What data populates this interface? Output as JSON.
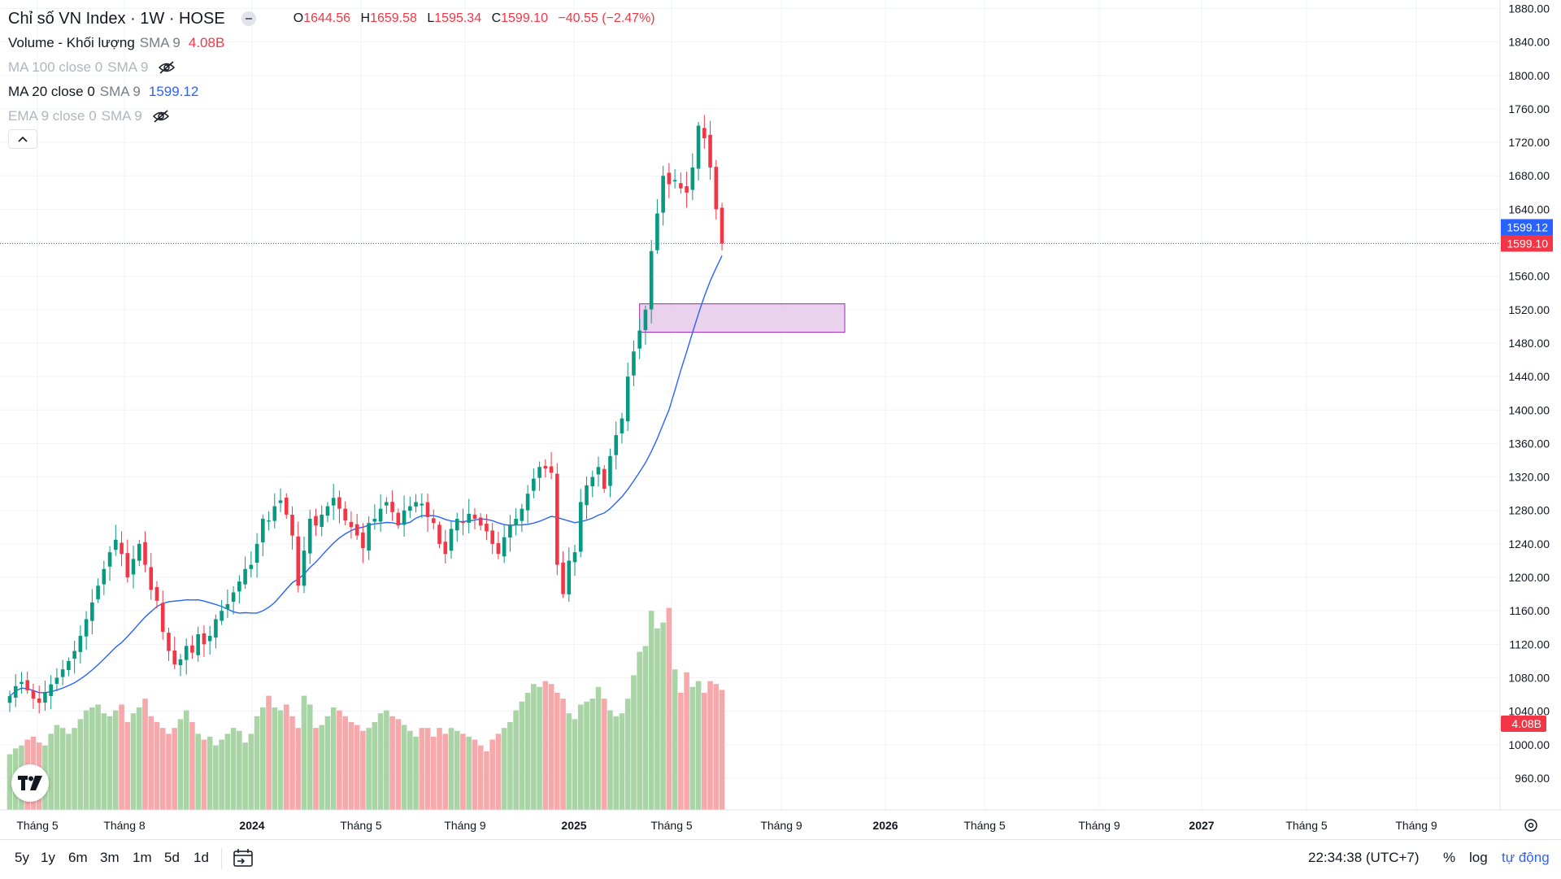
{
  "header": {
    "symbol": "Chỉ số VN Index · 1W · HOSE",
    "ohlc": {
      "open_label": "O",
      "open": "1644.56",
      "high_label": "H",
      "high": "1659.58",
      "low_label": "L",
      "low": "1595.34",
      "close_label": "C",
      "close": "1599.10",
      "change": "−40.55 (−2.47%)"
    }
  },
  "indicators": [
    {
      "name": "Volume - Khối lượng",
      "params": "SMA 9",
      "value": "4.08B",
      "value_color": "#f23645",
      "hidden": false
    },
    {
      "name": "MA 100 close 0",
      "params": "SMA 9",
      "value": "",
      "hidden": true
    },
    {
      "name": "MA 20 close 0",
      "params": "SMA 9",
      "value": "1599.12",
      "value_color": "#2962ff",
      "hidden": false
    },
    {
      "name": "EMA 9 close 0",
      "params": "SMA 9",
      "value": "",
      "hidden": true
    }
  ],
  "colors": {
    "up": "#089981",
    "down": "#f23645",
    "vol_up": "#a9d4a5",
    "vol_down": "#f7a8ab",
    "ma": "#2962ff",
    "zone": "#e1bee7",
    "zone_border": "#9c27b0"
  },
  "chart_data": {
    "type": "candlestick",
    "ylim": [
      940,
      1880
    ],
    "y_ticks": [
      "1880.00",
      "1840.00",
      "1800.00",
      "1760.00",
      "1720.00",
      "1680.00",
      "1640.00",
      "1600.00",
      "1560.00",
      "1520.00",
      "1480.00",
      "1440.00",
      "1400.00",
      "1360.00",
      "1320.00",
      "1280.00",
      "1240.00",
      "1200.00",
      "1160.00",
      "1120.00",
      "1080.00",
      "1040.00",
      "1000.00",
      "960.00"
    ],
    "x_ticks": [
      "Tháng 5",
      "Tháng 8",
      "2024",
      "Tháng 5",
      "Tháng 9",
      "2025",
      "Tháng 5",
      "Tháng 9",
      "2026",
      "Tháng 5",
      "Tháng 9",
      "2027",
      "Tháng 5",
      "Tháng 9"
    ],
    "x_tick_bold": [
      "2024",
      "2025",
      "2026",
      "2027"
    ],
    "price_label": "1599.10",
    "ma_label": "1599.12",
    "volume_label": "4.08B",
    "closes": [
      1058,
      1070,
      1075,
      1065,
      1055,
      1050,
      1062,
      1072,
      1080,
      1090,
      1100,
      1112,
      1130,
      1150,
      1170,
      1190,
      1210,
      1230,
      1245,
      1228,
      1200,
      1222,
      1240,
      1215,
      1185,
      1172,
      1135,
      1112,
      1096,
      1102,
      1118,
      1110,
      1132,
      1120,
      1130,
      1150,
      1160,
      1168,
      1182,
      1195,
      1210,
      1215,
      1240,
      1270,
      1268,
      1285,
      1292,
      1275,
      1250,
      1190,
      1232,
      1270,
      1262,
      1275,
      1285,
      1295,
      1282,
      1268,
      1260,
      1250,
      1235,
      1265,
      1270,
      1282,
      1290,
      1278,
      1262,
      1280,
      1285,
      1290,
      1288,
      1272,
      1265,
      1240,
      1228,
      1258,
      1270,
      1265,
      1276,
      1270,
      1262,
      1255,
      1240,
      1228,
      1248,
      1262,
      1270,
      1282,
      1300,
      1318,
      1332,
      1330,
      1325,
      1215,
      1180,
      1220,
      1230,
      1290,
      1310,
      1320,
      1332,
      1306,
      1345,
      1370,
      1390,
      1440,
      1470,
      1495,
      1520,
      1590,
      1635,
      1680,
      1670,
      1675,
      1665,
      1660,
      1690,
      1740,
      1725,
      1690,
      1640,
      1599
    ],
    "volumes_billions": [
      1.9,
      2.1,
      2.2,
      2.4,
      2.5,
      2.3,
      2.2,
      2.6,
      2.9,
      2.8,
      2.6,
      2.8,
      3.1,
      3.4,
      3.5,
      3.6,
      3.3,
      3.2,
      3.4,
      3.6,
      3.0,
      3.3,
      3.5,
      3.8,
      3.2,
      3.0,
      2.8,
      2.6,
      2.8,
      3.1,
      3.4,
      3.0,
      2.6,
      2.4,
      2.5,
      2.2,
      2.4,
      2.6,
      2.8,
      2.7,
      2.3,
      2.6,
      3.2,
      3.5,
      3.9,
      3.5,
      3.4,
      3.6,
      3.2,
      2.8,
      3.9,
      3.6,
      2.8,
      2.9,
      3.2,
      3.5,
      3.4,
      3.2,
      3.0,
      2.9,
      2.7,
      2.8,
      3.0,
      3.3,
      3.4,
      3.2,
      3.1,
      2.9,
      2.7,
      2.5,
      2.8,
      2.8,
      2.5,
      2.8,
      2.6,
      2.8,
      2.7,
      2.6,
      2.5,
      2.4,
      2.2,
      2.0,
      2.4,
      2.6,
      2.8,
      3.0,
      3.4,
      3.7,
      4.0,
      4.3,
      4.2,
      4.4,
      4.3,
      4.0,
      3.8,
      3.3,
      3.1,
      3.6,
      3.7,
      3.8,
      4.2,
      3.8,
      3.4,
      3.2,
      3.3,
      3.8,
      4.6,
      5.4,
      5.6,
      6.8,
      6.2,
      6.4,
      6.9,
      4.8,
      4.0,
      4.7,
      4.2,
      4.4,
      4.0,
      4.4,
      4.3,
      4.1
    ]
  },
  "footer": {
    "ranges": [
      "5y",
      "1y",
      "6m",
      "3m",
      "1m",
      "5d",
      "1d"
    ],
    "time": "22:34:38 (UTC+7)",
    "percent": "%",
    "log": "log",
    "auto": "tự động"
  }
}
